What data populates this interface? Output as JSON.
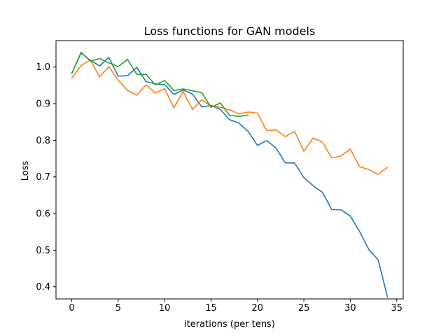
{
  "chart_data": {
    "type": "line",
    "title": "Loss functions for GAN models",
    "xlabel": "iterations (per tens)",
    "ylabel": "Loss",
    "xlim": [
      -1.7,
      35.7
    ],
    "ylim": [
      0.367,
      1.072
    ],
    "xticks": [
      0,
      5,
      10,
      15,
      20,
      25,
      30,
      35
    ],
    "yticks": [
      0.4,
      0.5,
      0.6,
      0.7,
      0.8,
      0.9,
      1.0
    ],
    "ytick_labels": [
      "0.4",
      "0.5",
      "0.6",
      "0.7",
      "0.8",
      "0.9",
      "1.0"
    ],
    "grid": false,
    "series": [
      {
        "color": "#1f77b4",
        "x": [
          0,
          1,
          2,
          3,
          4,
          5,
          6,
          7,
          8,
          9,
          10,
          11,
          12,
          13,
          14,
          15,
          16,
          17,
          18,
          19,
          20,
          21,
          22,
          23,
          24,
          25,
          26,
          27,
          28,
          29,
          30,
          31,
          32,
          33,
          34
        ],
        "values": [
          0.983,
          1.038,
          1.018,
          1.003,
          1.026,
          0.975,
          0.976,
          0.999,
          0.96,
          0.954,
          0.952,
          0.925,
          0.937,
          0.926,
          0.891,
          0.895,
          0.884,
          0.856,
          0.847,
          0.824,
          0.786,
          0.799,
          0.779,
          0.738,
          0.738,
          0.698,
          0.676,
          0.658,
          0.611,
          0.61,
          0.593,
          0.551,
          0.502,
          0.474,
          0.373
        ]
      },
      {
        "color": "#ff7f0e",
        "x": [
          0,
          1,
          2,
          3,
          4,
          5,
          6,
          7,
          8,
          9,
          10,
          11,
          12,
          13,
          14,
          15,
          16,
          17,
          18,
          19,
          20,
          21,
          22,
          23,
          24,
          25,
          26,
          27,
          28,
          29,
          30,
          31,
          32,
          33,
          34
        ],
        "values": [
          0.97,
          1.004,
          1.019,
          0.973,
          1.001,
          0.964,
          0.936,
          0.923,
          0.951,
          0.929,
          0.941,
          0.889,
          0.933,
          0.884,
          0.911,
          0.893,
          0.89,
          0.883,
          0.872,
          0.877,
          0.874,
          0.826,
          0.828,
          0.81,
          0.824,
          0.77,
          0.806,
          0.795,
          0.752,
          0.757,
          0.776,
          0.728,
          0.72,
          0.707,
          0.726
        ]
      },
      {
        "color": "#2ca02c",
        "x": [
          0,
          1,
          2,
          3,
          4,
          5,
          6,
          7,
          8,
          9,
          10,
          11,
          12,
          13,
          14,
          15,
          16,
          17,
          18,
          19
        ],
        "values": [
          0.982,
          1.04,
          1.016,
          1.023,
          1.011,
          1.001,
          1.021,
          0.98,
          0.98,
          0.951,
          0.963,
          0.936,
          0.94,
          0.935,
          0.93,
          0.89,
          0.902,
          0.868,
          0.865,
          0.869
        ]
      }
    ]
  }
}
